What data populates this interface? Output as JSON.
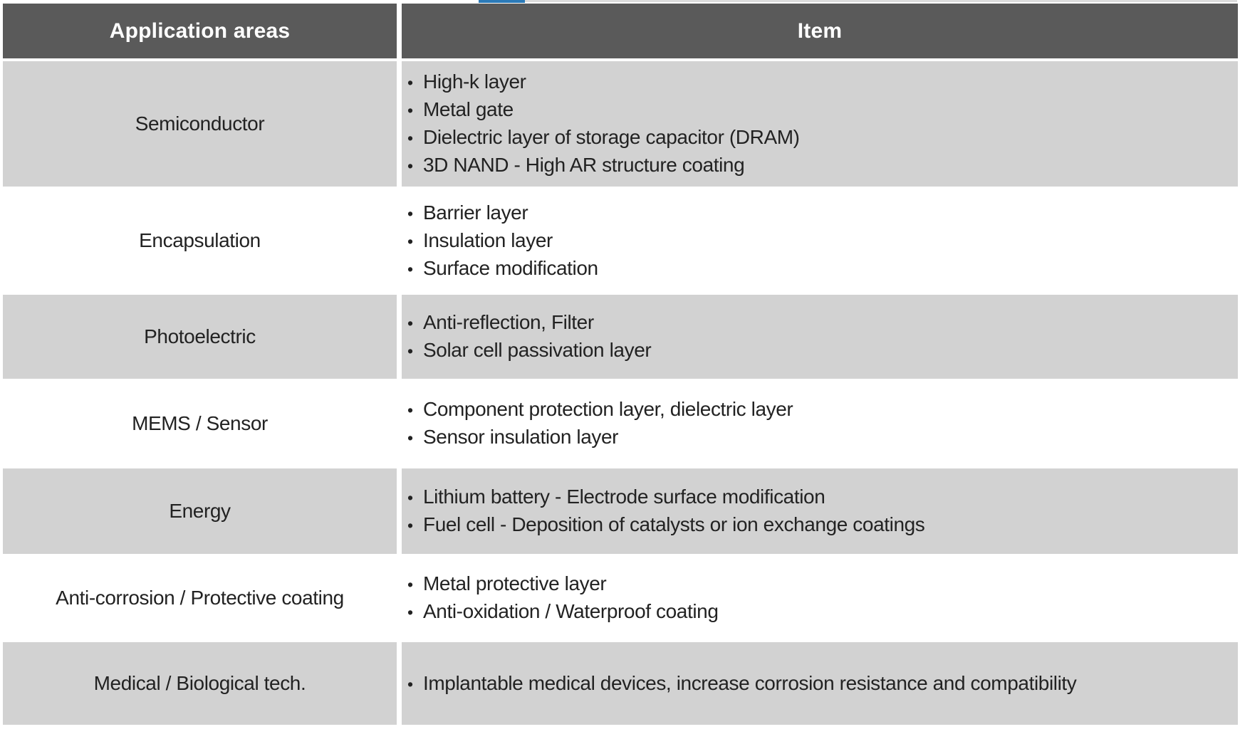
{
  "colors": {
    "page_bg": "#ffffff",
    "accent_blue": "#2b7ab8",
    "rule_gray": "#dcdcdc",
    "header_bg": "#5a5a5a",
    "header_text": "#ffffff",
    "row_shade": "#d2d2d2",
    "body_text": "#222222"
  },
  "table": {
    "bullet_char": "•",
    "headers": [
      "Application areas",
      "Item"
    ],
    "rows": [
      {
        "area": "Semiconductor",
        "shaded": true,
        "items": [
          "High-k layer",
          "Metal gate",
          "Dielectric layer of storage capacitor (DRAM)",
          "3D NAND - High AR structure coating"
        ]
      },
      {
        "area": "Encapsulation",
        "shaded": false,
        "items": [
          "Barrier layer",
          "Insulation layer",
          "Surface modification"
        ]
      },
      {
        "area": "Photoelectric",
        "shaded": true,
        "items": [
          "Anti-reflection, Filter",
          "Solar cell passivation layer"
        ]
      },
      {
        "area": "MEMS / Sensor",
        "shaded": false,
        "items": [
          "Component protection layer, dielectric layer",
          "Sensor insulation layer"
        ]
      },
      {
        "area": "Energy",
        "shaded": true,
        "items": [
          "Lithium battery - Electrode surface modification",
          "Fuel cell - Deposition of catalysts or ion exchange coatings"
        ]
      },
      {
        "area": "Anti-corrosion / Protective coating",
        "shaded": false,
        "items": [
          "Metal protective layer",
          "Anti-oxidation / Waterproof coating"
        ]
      },
      {
        "area": "Medical / Biological tech.",
        "shaded": true,
        "items": [
          "Implantable medical devices, increase corrosion resistance and compatibility"
        ]
      }
    ]
  }
}
